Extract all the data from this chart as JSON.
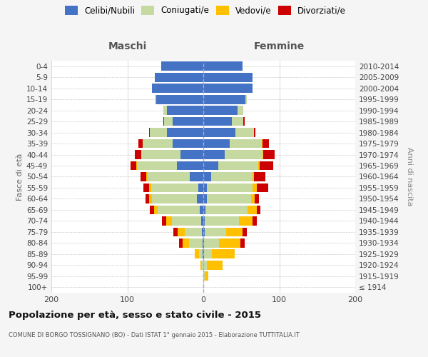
{
  "age_groups": [
    "100+",
    "95-99",
    "90-94",
    "85-89",
    "80-84",
    "75-79",
    "70-74",
    "65-69",
    "60-64",
    "55-59",
    "50-54",
    "45-49",
    "40-44",
    "35-39",
    "30-34",
    "25-29",
    "20-24",
    "15-19",
    "10-14",
    "5-9",
    "0-4"
  ],
  "birth_years": [
    "≤ 1914",
    "1915-1919",
    "1920-1924",
    "1925-1929",
    "1930-1934",
    "1935-1939",
    "1940-1944",
    "1945-1949",
    "1950-1954",
    "1955-1959",
    "1960-1964",
    "1965-1969",
    "1970-1974",
    "1975-1979",
    "1980-1984",
    "1985-1989",
    "1990-1994",
    "1995-1999",
    "2000-2004",
    "2005-2009",
    "2010-2014"
  ],
  "maschi": {
    "celibi": [
      0,
      0,
      0,
      1,
      1,
      2,
      3,
      5,
      8,
      7,
      18,
      35,
      30,
      40,
      48,
      40,
      48,
      62,
      68,
      64,
      55
    ],
    "coniugati": [
      0,
      0,
      2,
      5,
      18,
      22,
      38,
      55,
      60,
      62,
      55,
      52,
      52,
      40,
      22,
      12,
      5,
      2,
      0,
      0,
      0
    ],
    "vedovi": [
      0,
      0,
      2,
      5,
      8,
      10,
      8,
      5,
      3,
      2,
      2,
      1,
      0,
      0,
      0,
      0,
      0,
      0,
      0,
      0,
      0
    ],
    "divorziati": [
      0,
      0,
      0,
      0,
      5,
      5,
      5,
      5,
      5,
      8,
      8,
      8,
      8,
      5,
      1,
      1,
      0,
      0,
      0,
      0,
      0
    ]
  },
  "femmine": {
    "nubili": [
      0,
      0,
      0,
      1,
      1,
      2,
      2,
      3,
      5,
      5,
      10,
      20,
      28,
      35,
      42,
      38,
      45,
      55,
      65,
      65,
      52
    ],
    "coniugate": [
      0,
      2,
      5,
      10,
      20,
      28,
      45,
      55,
      58,
      60,
      55,
      52,
      50,
      42,
      25,
      15,
      8,
      2,
      0,
      0,
      0
    ],
    "vedove": [
      0,
      5,
      20,
      30,
      28,
      22,
      18,
      12,
      5,
      5,
      2,
      2,
      1,
      1,
      0,
      0,
      0,
      0,
      0,
      0,
      0
    ],
    "divorziate": [
      0,
      0,
      0,
      0,
      5,
      5,
      5,
      5,
      5,
      15,
      15,
      18,
      15,
      8,
      2,
      1,
      0,
      0,
      0,
      0,
      0
    ]
  },
  "colors": {
    "celibi_nubili": "#4472c4",
    "coniugati_e": "#c5d9a0",
    "vedovi_e": "#ffc000",
    "divorziati_e": "#cc0000"
  },
  "title": "Popolazione per età, sesso e stato civile - 2015",
  "subtitle": "COMUNE DI BORGO TOSSIGNANO (BO) - Dati ISTAT 1° gennaio 2015 - Elaborazione TUTTITALIA.IT",
  "xlabel_left": "Maschi",
  "xlabel_right": "Femmine",
  "ylabel_left": "Fasce di età",
  "ylabel_right": "Anni di nascita",
  "xlim": 200,
  "bg_color": "#f5f5f5",
  "plot_bg_color": "#ffffff",
  "grid_color": "#cccccc"
}
